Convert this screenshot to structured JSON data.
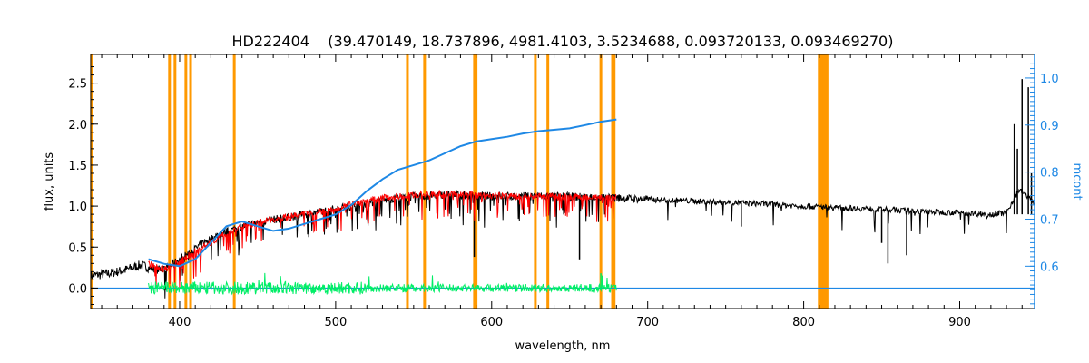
{
  "chart_data": {
    "type": "line",
    "title": "HD222404    (39.470149, 18.737896, 4981.4103, 3.5234688, 0.093720133, 0.093469270)",
    "xlabel": "wavelength, nm",
    "ylabel": "flux, units",
    "y2label": "mcont",
    "xlim": [
      343,
      948
    ],
    "ylim": [
      -0.25,
      2.85
    ],
    "y2lim": [
      0.51,
      1.05
    ],
    "x_ticks": [
      400,
      500,
      600,
      700,
      800,
      900
    ],
    "y_ticks": [
      0.0,
      0.5,
      1.0,
      1.5,
      2.0,
      2.5
    ],
    "y2_ticks": [
      0.6,
      0.7,
      0.8,
      0.9,
      1.0
    ],
    "y_tick_labels": [
      "0.0",
      "0.5",
      "1.0",
      "1.5",
      "2.0",
      "2.5"
    ],
    "y2_tick_labels": [
      "0.6",
      "0.7",
      "0.8",
      "0.9",
      "1.0"
    ],
    "grid": false,
    "colors": {
      "observed": "#000000",
      "model": "#ff0000",
      "residual": "#00ee66",
      "continuum": "#1e88e5",
      "masked_region": "#ff9900",
      "axis2": "#1e88e5"
    },
    "series": [
      {
        "role": "observed",
        "axis": "left",
        "x_range": [
          343,
          948
        ],
        "envelope": [
          [
            343,
            0.15
          ],
          [
            355,
            0.18
          ],
          [
            365,
            0.22
          ],
          [
            375,
            0.28
          ],
          [
            385,
            0.22
          ],
          [
            392,
            0.25
          ],
          [
            400,
            0.35
          ],
          [
            408,
            0.45
          ],
          [
            415,
            0.55
          ],
          [
            425,
            0.65
          ],
          [
            435,
            0.72
          ],
          [
            445,
            0.78
          ],
          [
            455,
            0.82
          ],
          [
            465,
            0.85
          ],
          [
            480,
            0.9
          ],
          [
            495,
            0.95
          ],
          [
            510,
            1.0
          ],
          [
            525,
            1.05
          ],
          [
            540,
            1.1
          ],
          [
            555,
            1.12
          ],
          [
            570,
            1.14
          ],
          [
            585,
            1.13
          ],
          [
            600,
            1.12
          ],
          [
            620,
            1.12
          ],
          [
            640,
            1.12
          ],
          [
            660,
            1.11
          ],
          [
            680,
            1.1
          ],
          [
            700,
            1.08
          ],
          [
            720,
            1.07
          ],
          [
            740,
            1.05
          ],
          [
            760,
            1.04
          ],
          [
            780,
            1.02
          ],
          [
            800,
            1.0
          ],
          [
            820,
            0.98
          ],
          [
            840,
            0.97
          ],
          [
            860,
            0.95
          ],
          [
            880,
            0.93
          ],
          [
            900,
            0.92
          ],
          [
            920,
            0.9
          ],
          [
            930,
            0.92
          ],
          [
            938,
            1.2
          ],
          [
            945,
            1.1
          ],
          [
            948,
            1.0
          ]
        ],
        "spikes": [
          [
            935,
            2.0
          ],
          [
            937,
            1.7
          ],
          [
            940,
            2.55
          ],
          [
            944,
            2.45
          ],
          [
            946,
            1.4
          ]
        ]
      },
      {
        "role": "model",
        "axis": "left",
        "x_range": [
          380,
          680
        ],
        "envelope": [
          [
            380,
            0.3
          ],
          [
            390,
            0.22
          ],
          [
            400,
            0.32
          ],
          [
            410,
            0.45
          ],
          [
            420,
            0.55
          ],
          [
            430,
            0.68
          ],
          [
            440,
            0.75
          ],
          [
            450,
            0.8
          ],
          [
            460,
            0.84
          ],
          [
            470,
            0.87
          ],
          [
            480,
            0.9
          ],
          [
            490,
            0.94
          ],
          [
            500,
            0.97
          ],
          [
            510,
            1.02
          ],
          [
            520,
            1.06
          ],
          [
            530,
            1.1
          ],
          [
            540,
            1.12
          ],
          [
            555,
            1.14
          ],
          [
            570,
            1.15
          ],
          [
            585,
            1.14
          ],
          [
            600,
            1.13
          ],
          [
            620,
            1.12
          ],
          [
            640,
            1.12
          ],
          [
            660,
            1.11
          ],
          [
            680,
            1.1
          ]
        ]
      },
      {
        "role": "residual",
        "axis": "left",
        "x_range": [
          380,
          680
        ],
        "baseline": 0.0,
        "amplitude": 0.12
      },
      {
        "role": "continuum",
        "axis": "right",
        "points": [
          [
            380,
            0.615
          ],
          [
            390,
            0.605
          ],
          [
            400,
            0.6
          ],
          [
            410,
            0.615
          ],
          [
            420,
            0.65
          ],
          [
            430,
            0.685
          ],
          [
            440,
            0.695
          ],
          [
            450,
            0.685
          ],
          [
            460,
            0.675
          ],
          [
            470,
            0.68
          ],
          [
            480,
            0.69
          ],
          [
            490,
            0.7
          ],
          [
            500,
            0.71
          ],
          [
            510,
            0.73
          ],
          [
            520,
            0.76
          ],
          [
            530,
            0.785
          ],
          [
            540,
            0.805
          ],
          [
            550,
            0.815
          ],
          [
            560,
            0.825
          ],
          [
            570,
            0.84
          ],
          [
            580,
            0.855
          ],
          [
            590,
            0.865
          ],
          [
            600,
            0.87
          ],
          [
            610,
            0.875
          ],
          [
            620,
            0.882
          ],
          [
            630,
            0.887
          ],
          [
            640,
            0.89
          ],
          [
            650,
            0.893
          ],
          [
            660,
            0.9
          ],
          [
            670,
            0.907
          ],
          [
            680,
            0.912
          ]
        ]
      },
      {
        "role": "flat_baseline",
        "axis": "left",
        "x_range": [
          343,
          948
        ],
        "y": 0.0
      }
    ],
    "masked_lines_nm": [
      343.5,
      393.5,
      397,
      404,
      407,
      435,
      546,
      557,
      589,
      590,
      628,
      636,
      670,
      677.5,
      678.5,
      810,
      811,
      812,
      813,
      814,
      815
    ]
  }
}
